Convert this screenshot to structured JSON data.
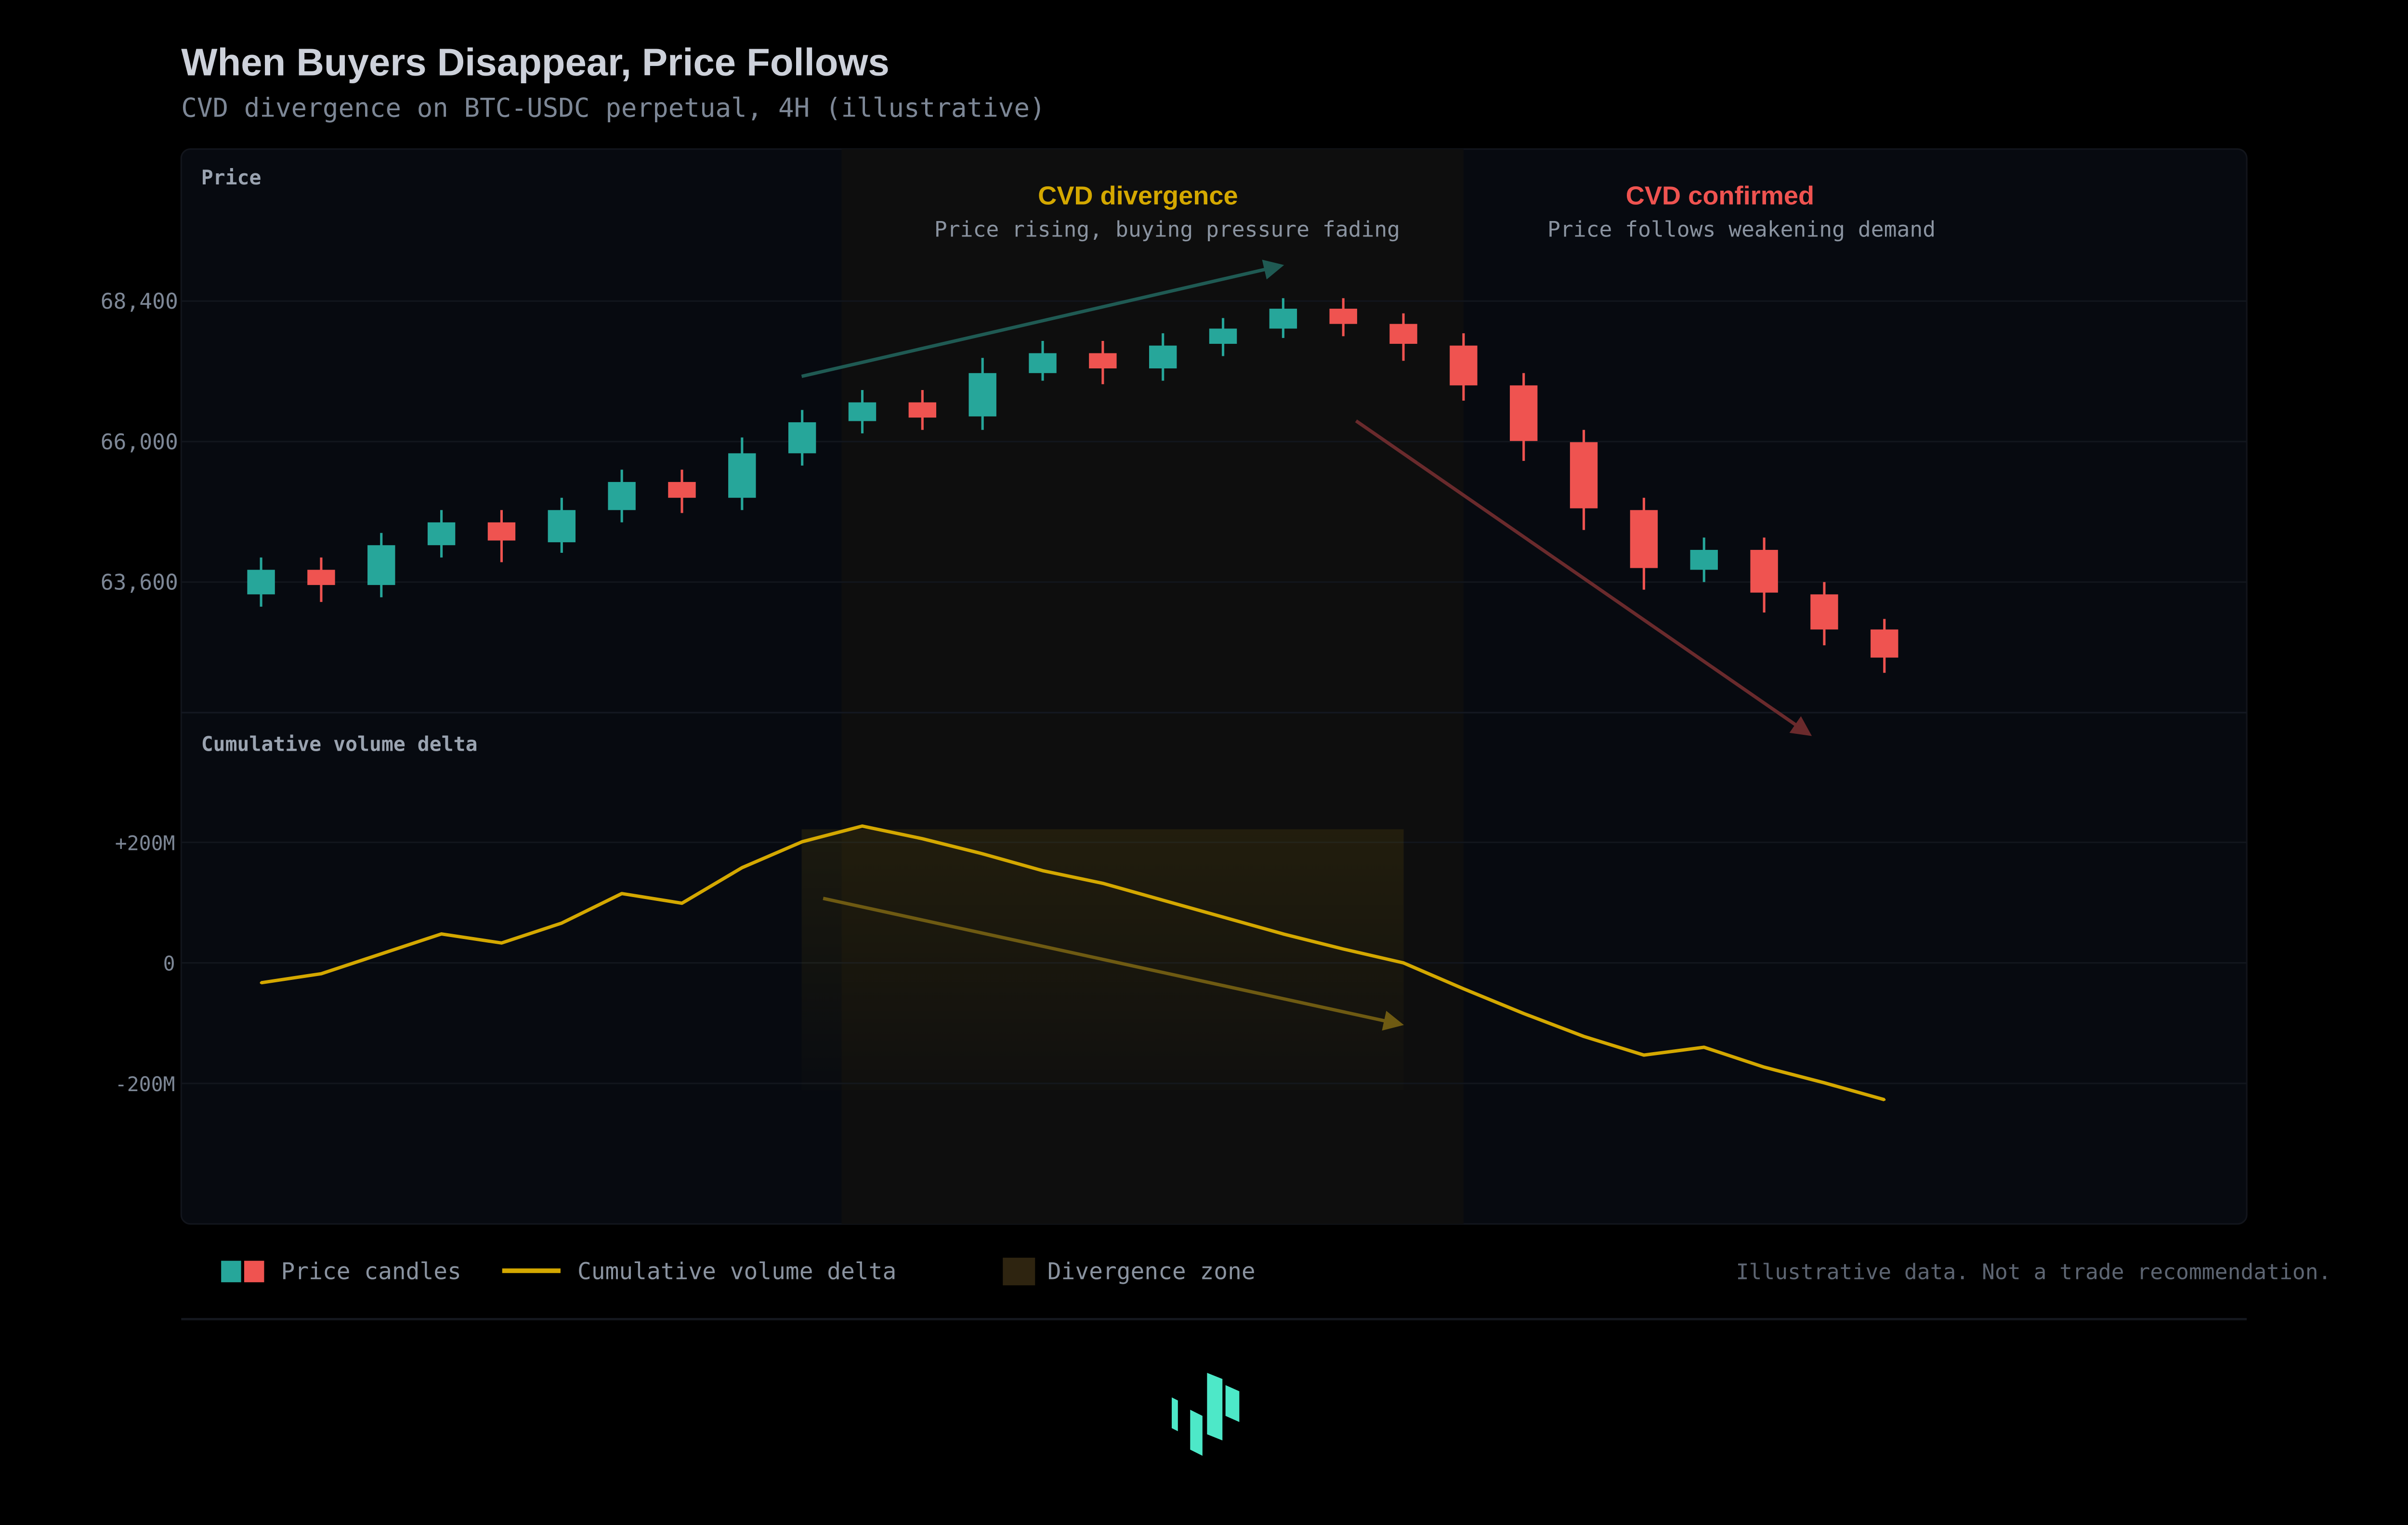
{
  "header": {
    "title": "When Buyers Disappear, Price Follows",
    "subtitle": "CVD divergence on BTC-USDC perpetual, 4H (illustrative)"
  },
  "annotations": {
    "divergence_title": "CVD divergence",
    "divergence_sub": "Price rising, buying pressure fading",
    "confirmed_title": "CVD confirmed",
    "confirmed_sub": "Price follows weakening demand"
  },
  "legend": {
    "candles": "Price candles",
    "cvd": "Cumulative volume delta",
    "zone": "Divergence zone",
    "disclaimer": "Illustrative data. Not a trade recommendation."
  },
  "colors": {
    "up": "#26a69a",
    "down": "#ef5350",
    "cvd": "#d4a800",
    "zone": "#2e2410",
    "logo": "#4de8c8"
  },
  "icons": {
    "logo": "brand-logo-icon"
  },
  "chart_data": [
    {
      "type": "candlestick",
      "title": "Price",
      "ylim": [
        61800,
        70000
      ],
      "yticks": [
        {
          "value": 63600,
          "label": "63,600"
        },
        {
          "value": 66000,
          "label": "66,000"
        },
        {
          "value": 68400,
          "label": "68,400"
        }
      ],
      "grid": true,
      "divergence_zone_candles": [
        10,
        20
      ],
      "ohlc": [
        [
          63390,
          64020,
          63180,
          63810
        ],
        [
          63810,
          64020,
          63260,
          63550
        ],
        [
          63550,
          64440,
          63340,
          64230
        ],
        [
          64230,
          64830,
          64020,
          64620
        ],
        [
          64620,
          64830,
          63940,
          64310
        ],
        [
          64280,
          65040,
          64100,
          64830
        ],
        [
          64830,
          65520,
          64620,
          65310
        ],
        [
          65310,
          65520,
          64780,
          65040
        ],
        [
          65040,
          66070,
          64830,
          65800
        ],
        [
          65800,
          66540,
          65590,
          66330
        ],
        [
          66350,
          66880,
          66140,
          66670
        ],
        [
          66670,
          66880,
          66200,
          66410
        ],
        [
          66430,
          67430,
          66200,
          67170
        ],
        [
          67170,
          67720,
          67040,
          67510
        ],
        [
          67510,
          67720,
          66980,
          67250
        ],
        [
          67250,
          67850,
          67040,
          67640
        ],
        [
          67670,
          68110,
          67460,
          67930
        ],
        [
          67930,
          68450,
          67770,
          68270
        ],
        [
          68270,
          68450,
          67800,
          68010
        ],
        [
          68010,
          68190,
          67380,
          67670
        ],
        [
          67640,
          67850,
          66700,
          66960
        ],
        [
          66960,
          67170,
          65670,
          66010
        ],
        [
          65990,
          66200,
          64490,
          64860
        ],
        [
          64830,
          65040,
          63470,
          63840
        ],
        [
          63810,
          64360,
          63600,
          64150
        ],
        [
          64150,
          64360,
          63080,
          63420
        ],
        [
          63390,
          63600,
          62520,
          62790
        ],
        [
          62790,
          62970,
          62050,
          62310
        ]
      ]
    },
    {
      "type": "line",
      "title": "Cumulative volume delta",
      "name": "Cumulative volume delta",
      "unit": "M",
      "ylim": [
        -420,
        300
      ],
      "yticks": [
        {
          "value": 200,
          "label": "+200M"
        },
        {
          "value": 0,
          "label": "0"
        },
        {
          "value": -200,
          "label": "-200M"
        }
      ],
      "grid": true,
      "values": [
        -33,
        -18,
        15,
        48,
        33,
        66,
        115,
        99,
        158,
        201,
        227,
        206,
        181,
        153,
        132,
        104,
        76,
        48,
        23,
        0,
        -43,
        -84,
        -122,
        -153,
        -140,
        -173,
        -199,
        -227
      ]
    }
  ]
}
